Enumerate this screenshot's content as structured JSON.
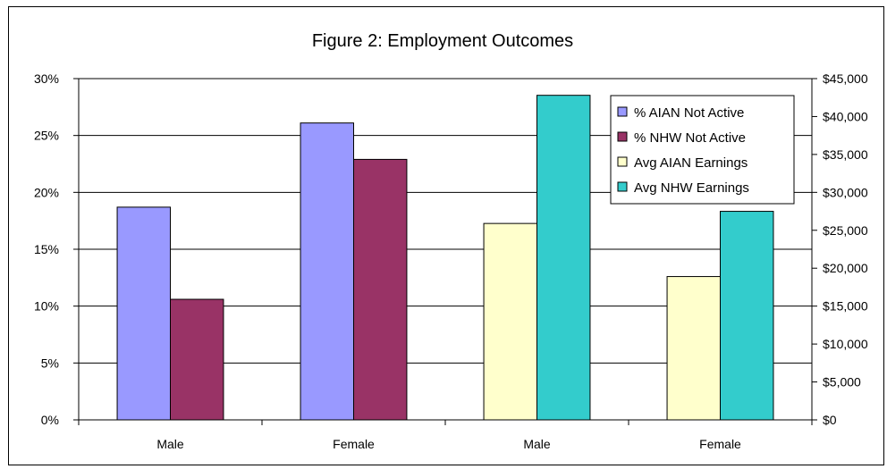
{
  "chart_data": {
    "type": "bar",
    "title": "Figure 2: Employment Outcomes",
    "categories": [
      "Male",
      "Female",
      "Male",
      "Female"
    ],
    "left_axis": {
      "ticks": [
        "0%",
        "5%",
        "10%",
        "15%",
        "20%",
        "25%",
        "30%"
      ],
      "ylim": [
        0,
        30
      ],
      "unit": "%"
    },
    "right_axis": {
      "ticks": [
        "$0",
        "$5,000",
        "$10,000",
        "$15,000",
        "$20,000",
        "$25,000",
        "$30,000",
        "$35,000",
        "$40,000",
        "$45,000"
      ],
      "ylim": [
        0,
        45000
      ],
      "unit": "$"
    },
    "series": [
      {
        "name": "% AIAN Not Active",
        "axis": "left",
        "color": "#9999ff",
        "values": [
          18.7,
          26.1,
          null,
          null
        ]
      },
      {
        "name": "% NHW Not Active",
        "axis": "left",
        "color": "#993366",
        "values": [
          10.6,
          22.9,
          null,
          null
        ]
      },
      {
        "name": "Avg AIAN Earnings",
        "axis": "right",
        "color": "#ffffcc",
        "values": [
          null,
          null,
          25900,
          18900
        ]
      },
      {
        "name": "Avg NHW Earnings",
        "axis": "right",
        "color": "#33cccc",
        "values": [
          null,
          null,
          42800,
          27500
        ]
      }
    ],
    "grid": true,
    "legend_position": "top-right"
  }
}
